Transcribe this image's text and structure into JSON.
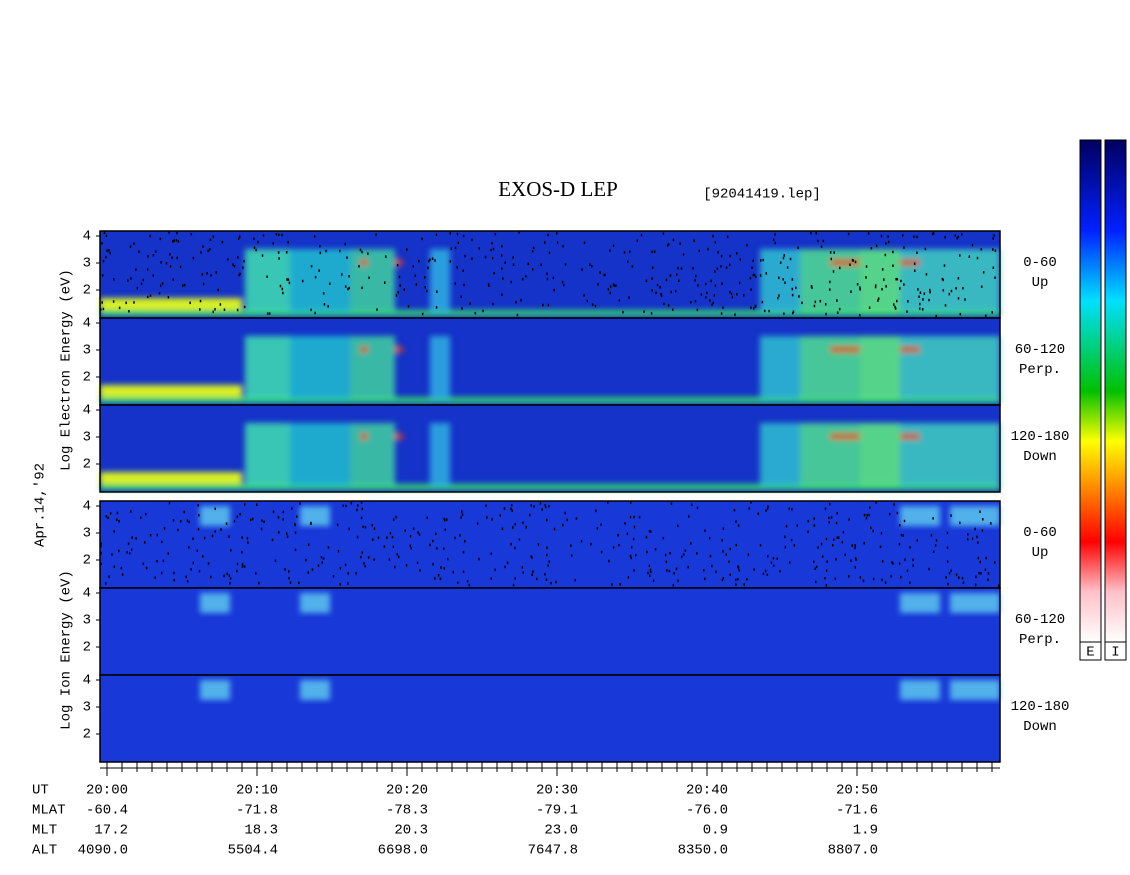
{
  "header": {
    "title": "EXOS-D LEP",
    "file": "[92041419.lep]"
  },
  "date": "Apr.14,'92",
  "electron_axis": "Log Electron Energy (eV)",
  "ion_axis": "Log Ion Energy (eV)",
  "energy_ticks": [
    "4",
    "3",
    "2"
  ],
  "pitch_angles": [
    {
      "range": "0-60",
      "direction": "Up"
    },
    {
      "range": "60-120",
      "direction": "Perp."
    },
    {
      "range": "120-180",
      "direction": "Down"
    }
  ],
  "colorbars": [
    "E",
    "I"
  ],
  "orbit_table": {
    "labels": [
      "UT",
      "MLAT",
      "MLT",
      "ALT"
    ],
    "columns": [
      [
        "20:00",
        "-60.4",
        "17.2",
        "4090.0"
      ],
      [
        "20:10",
        "-71.8",
        "18.3",
        "5504.4"
      ],
      [
        "20:20",
        "-78.3",
        "20.3",
        "6698.0"
      ],
      [
        "20:30",
        "-79.1",
        "23.0",
        "7647.8"
      ],
      [
        "20:40",
        "-76.0",
        "0.9",
        "8350.0"
      ],
      [
        "20:50",
        "-71.6",
        "1.9",
        "8807.0"
      ]
    ]
  }
}
